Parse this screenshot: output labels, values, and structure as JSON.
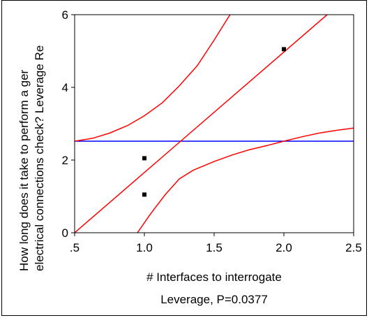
{
  "chart_data": {
    "type": "scatter",
    "xlabel": "# Interfaces to interrogate",
    "ylabel_lines": [
      "How long does it take to perform a ger",
      "electrical connections check? Leverage Re"
    ],
    "caption": "Leverage, P=0.0377",
    "xlim": [
      0.5,
      2.5
    ],
    "ylim": [
      0,
      6
    ],
    "x_ticks": [
      0.5,
      1.0,
      1.5,
      2.0,
      2.5
    ],
    "x_tick_labels": [
      ".5",
      "1.0",
      "1.5",
      "2.0",
      "2.5"
    ],
    "y_ticks": [
      0,
      2,
      4,
      6
    ],
    "y_tick_labels": [
      "0",
      "2",
      "4",
      "6"
    ],
    "points": [
      {
        "x": 1.0,
        "y": 2.05
      },
      {
        "x": 1.0,
        "y": 1.05
      },
      {
        "x": 2.0,
        "y": 5.05
      }
    ],
    "mean_line": {
      "y": 2.52,
      "color": "#0000ff"
    },
    "fit_line": {
      "x": [
        0.5,
        2.31
      ],
      "y": [
        0.0,
        6.0
      ],
      "color": "#ff0000"
    },
    "upper_band": {
      "x": [
        0.5,
        0.63,
        0.75,
        0.88,
        1.0,
        1.13,
        1.25,
        1.38,
        1.5,
        1.63,
        1.75
      ],
      "y": [
        2.52,
        2.6,
        2.74,
        2.95,
        3.22,
        3.58,
        4.04,
        4.6,
        5.3,
        6.1,
        6.9
      ],
      "color": "#ff0000"
    },
    "lower_band": {
      "x": [
        0.95,
        1.05,
        1.15,
        1.25,
        1.35,
        1.5,
        1.63,
        1.75,
        1.88,
        2.0,
        2.13,
        2.25,
        2.38,
        2.5
      ],
      "y": [
        0.0,
        0.55,
        1.05,
        1.48,
        1.72,
        1.96,
        2.14,
        2.28,
        2.4,
        2.52,
        2.64,
        2.74,
        2.82,
        2.88
      ],
      "color": "#ff0000"
    }
  }
}
